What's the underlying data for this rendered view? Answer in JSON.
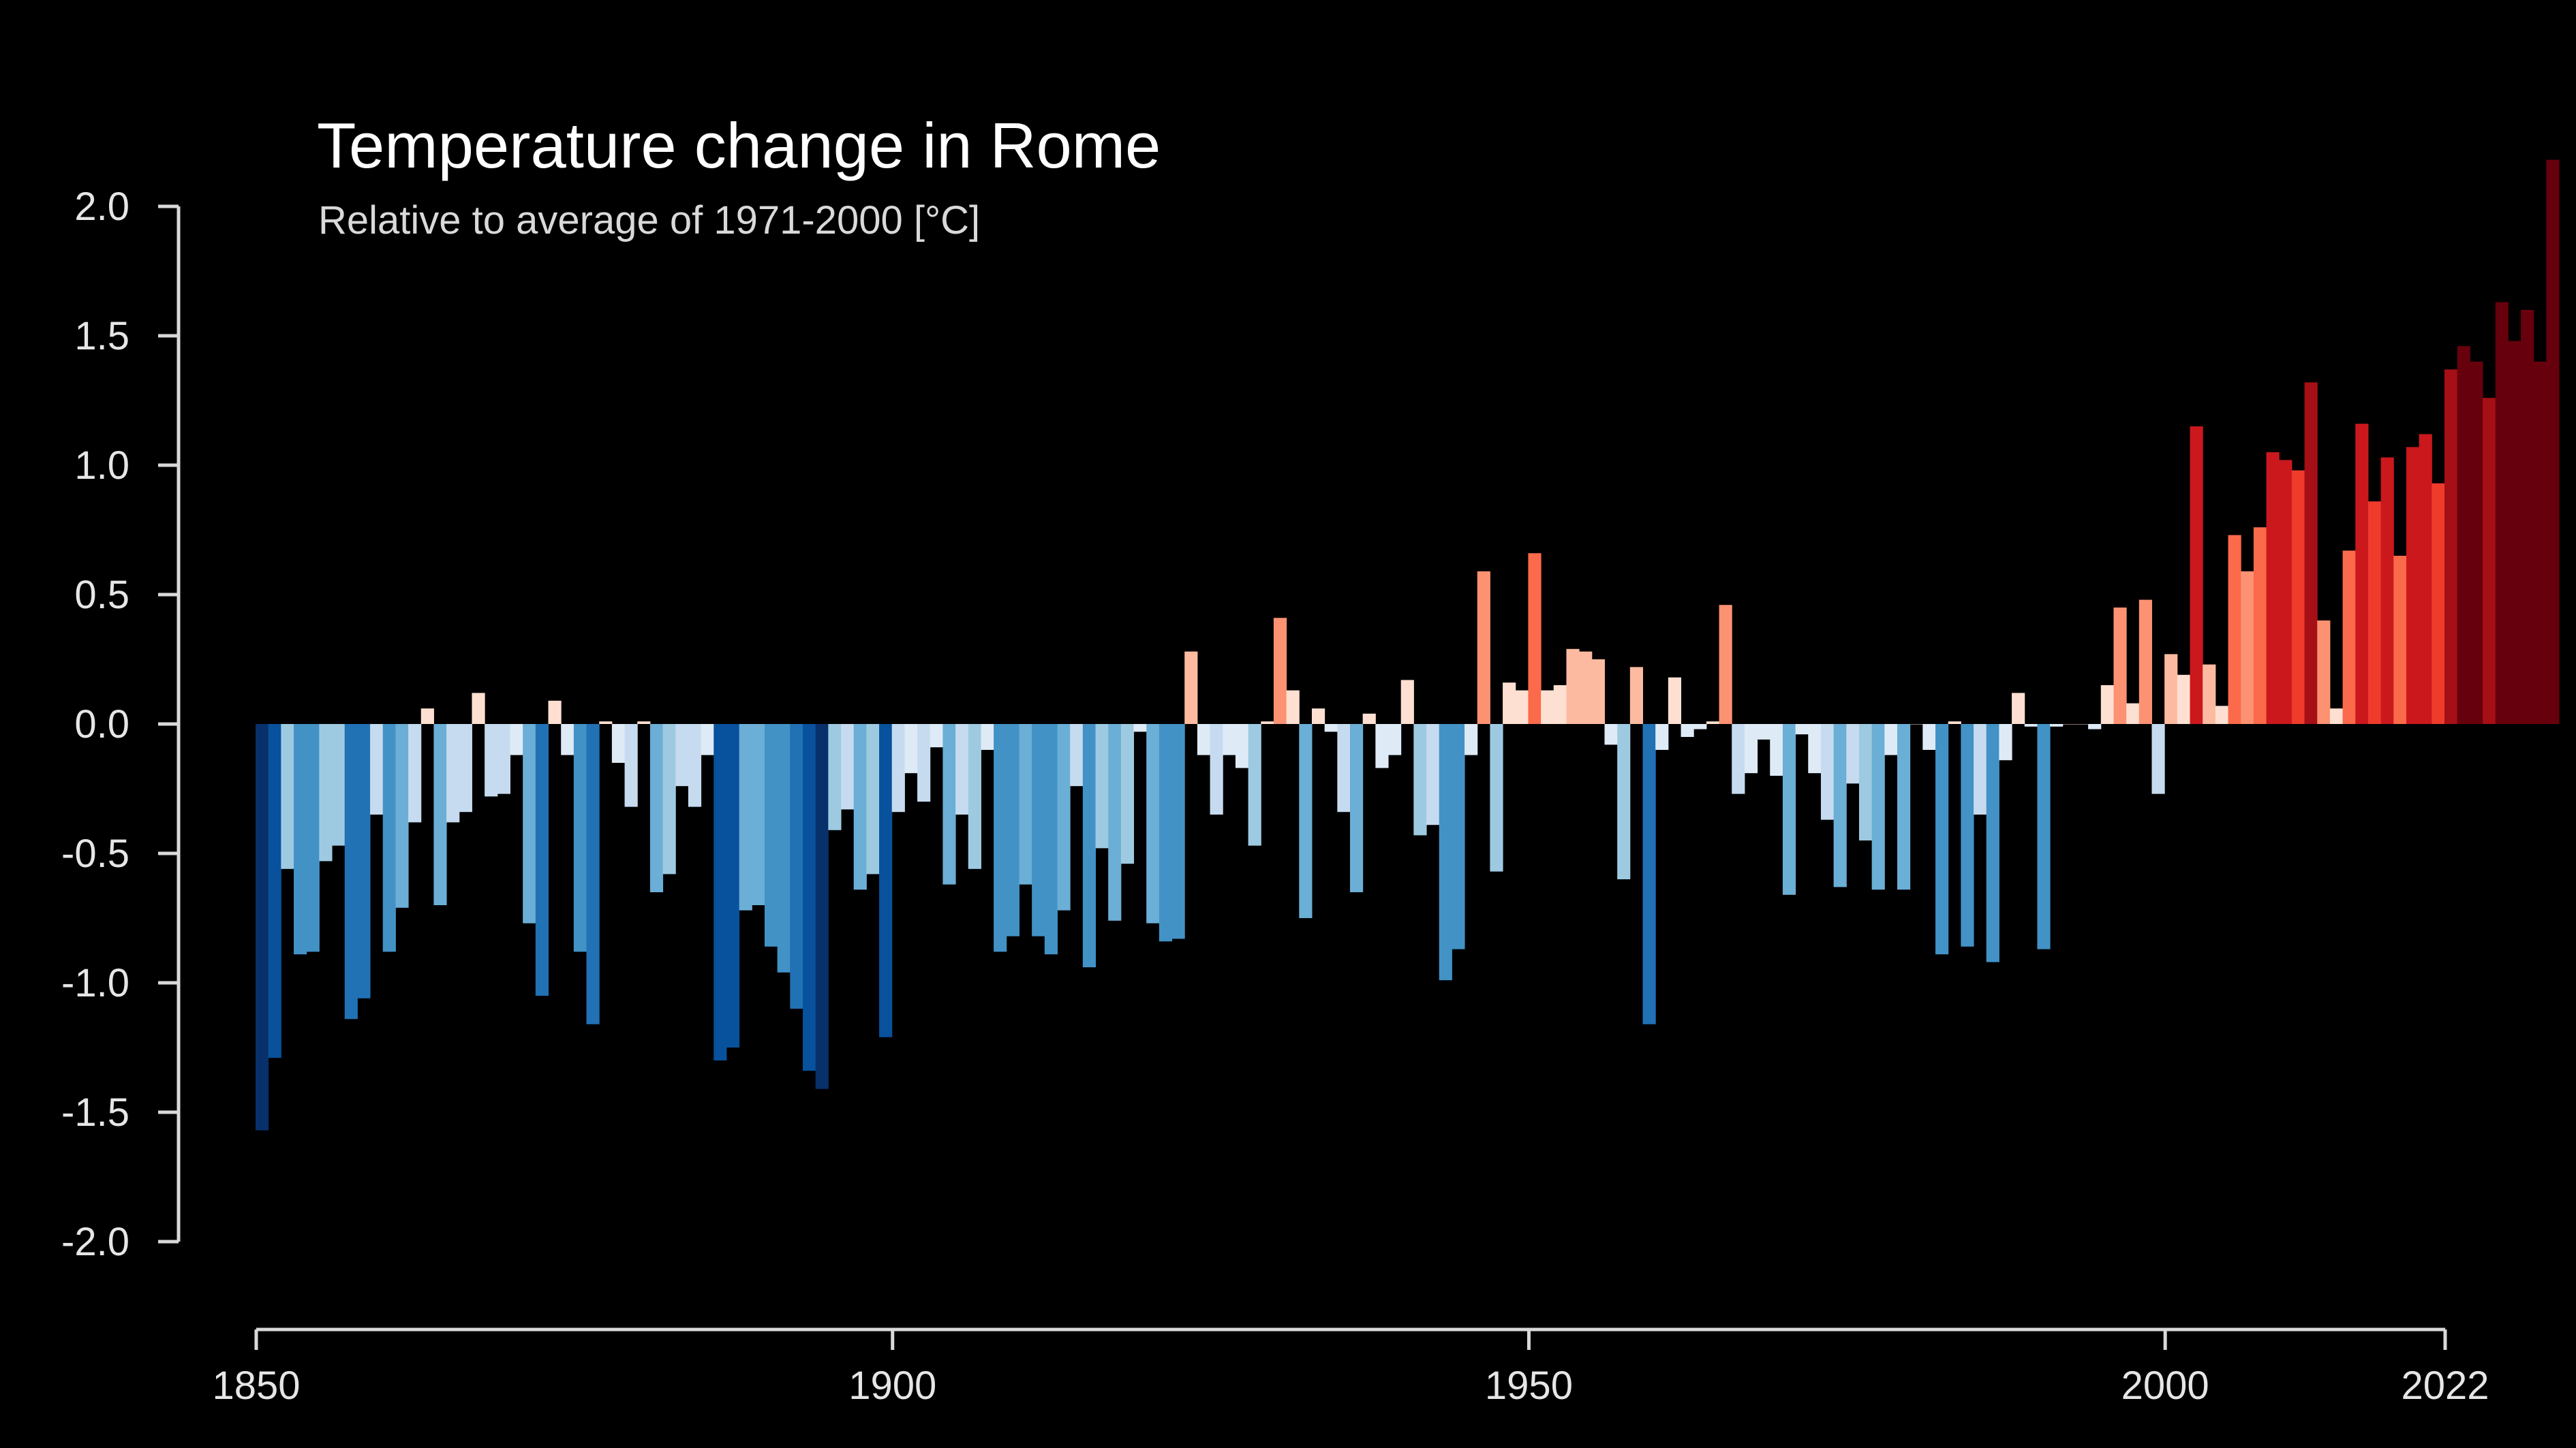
{
  "chart_data": {
    "type": "bar",
    "title": "Temperature change in Rome",
    "subtitle": "Relative to average of 1971-2000  [°C]",
    "xlabel": "",
    "ylabel": "",
    "x_range": [
      1850,
      2022
    ],
    "ylim": [
      -2.0,
      2.0
    ],
    "y_ticks": [
      2.0,
      1.5,
      1.0,
      0.5,
      0.0,
      -0.5,
      -1.0,
      -1.5,
      -2.0
    ],
    "y_tick_labels": [
      "2.0",
      "1.5",
      "1.0",
      "0.5",
      "0.0",
      "-0.5",
      "-1.0",
      "-1.5",
      "-2.0"
    ],
    "x_ticks": [
      1850,
      1900,
      1950,
      2000,
      2022
    ],
    "x_tick_labels": [
      "1850",
      "1900",
      "1950",
      "2000",
      "2022"
    ],
    "grid": false,
    "legend": "none",
    "colormap": [
      "#08306b",
      "#08519c",
      "#2171b5",
      "#4292c6",
      "#6baed6",
      "#9ecae1",
      "#c6dbef",
      "#deebf7",
      "#fee0d2",
      "#fcbba1",
      "#fc9272",
      "#fb6a4a",
      "#ef3b2c",
      "#cb181d",
      "#a50f15",
      "#67000d"
    ],
    "colormap_range": [
      -1.6,
      1.6
    ],
    "start_year": 1850,
    "values": [
      -1.57,
      -1.29,
      -0.56,
      -0.89,
      -0.88,
      -0.53,
      -0.47,
      -1.14,
      -1.06,
      -0.35,
      -0.88,
      -0.71,
      -0.38,
      0.06,
      -0.7,
      -0.38,
      -0.34,
      0.12,
      -0.28,
      -0.27,
      -0.12,
      -0.77,
      -1.05,
      0.09,
      -0.12,
      -0.88,
      -1.16,
      0.01,
      -0.15,
      -0.32,
      0.01,
      -0.65,
      -0.58,
      -0.24,
      -0.32,
      -0.12,
      -1.3,
      -1.25,
      -0.72,
      -0.7,
      -0.86,
      -0.96,
      -1.1,
      -1.34,
      -1.41,
      -0.41,
      -0.33,
      -0.64,
      -0.58,
      -1.21,
      -0.34,
      -0.19,
      -0.3,
      -0.09,
      -0.62,
      -0.35,
      -0.56,
      -0.1,
      -0.88,
      -0.82,
      -0.62,
      -0.82,
      -0.89,
      -0.72,
      -0.24,
      -0.94,
      -0.48,
      -0.76,
      -0.54,
      -0.03,
      -0.77,
      -0.84,
      -0.83,
      0.28,
      -0.12,
      -0.35,
      -0.12,
      -0.17,
      -0.47,
      0.01,
      0.41,
      0.13,
      -0.75,
      0.06,
      -0.03,
      -0.34,
      -0.65,
      0.04,
      -0.17,
      -0.12,
      0.17,
      -0.43,
      -0.39,
      -0.99,
      -0.87,
      -0.12,
      0.59,
      -0.57,
      0.16,
      0.13,
      0.66,
      0.13,
      0.15,
      0.29,
      0.28,
      0.25,
      -0.08,
      -0.6,
      0.22,
      -1.16,
      -0.1,
      0.18,
      -0.05,
      -0.02,
      0.01,
      0.46,
      -0.27,
      -0.19,
      -0.06,
      -0.2,
      -0.66,
      -0.04,
      -0.19,
      -0.37,
      -0.63,
      -0.23,
      -0.45,
      -0.64,
      -0.12,
      -0.64,
      0.0,
      -0.1,
      -0.89,
      0.01,
      -0.86,
      -0.35,
      -0.92,
      -0.14,
      0.12,
      -0.01,
      -0.87,
      -0.01,
      0.0,
      0.0,
      -0.02,
      0.15,
      0.45,
      0.08,
      0.48,
      -0.27,
      0.27,
      0.19,
      1.15,
      0.23,
      0.07,
      0.73,
      0.59,
      0.76,
      1.05,
      1.02,
      0.98,
      1.32,
      0.4,
      0.06,
      0.67,
      1.16,
      0.86,
      1.03,
      0.65,
      1.07,
      1.12,
      0.93,
      1.37,
      1.46,
      1.4,
      1.26,
      1.63,
      1.48,
      1.6,
      1.4,
      2.18
    ]
  }
}
